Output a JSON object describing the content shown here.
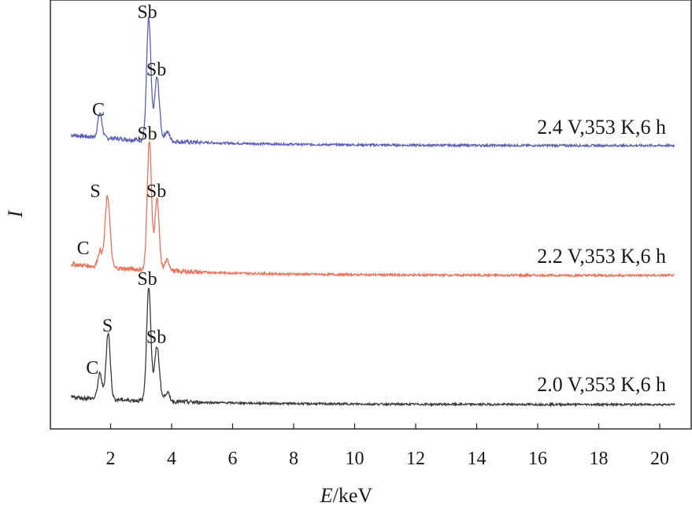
{
  "chart_data": {
    "type": "line",
    "title": "",
    "xlabel_italic": "E",
    "xlabel_unit": "/keV",
    "ylabel": "I",
    "xlim": [
      0.5,
      20.5
    ],
    "x_ticks": [
      "2",
      "4",
      "6",
      "8",
      "10",
      "12",
      "14",
      "16",
      "18",
      "20"
    ],
    "x_tick_values": [
      2,
      4,
      6,
      8,
      10,
      12,
      14,
      16,
      18,
      20
    ],
    "grid": false,
    "series": [
      {
        "name": "2.4 V,353 K,6 h",
        "color": "#5b5fb8",
        "baseline": 0.08,
        "peaks": [
          {
            "x": 1.65,
            "height": 0.2,
            "width": 0.07
          },
          {
            "x": 3.25,
            "height": 1.0,
            "width": 0.07
          },
          {
            "x": 3.52,
            "height": 0.52,
            "width": 0.08
          },
          {
            "x": 3.85,
            "height": 0.08,
            "width": 0.08
          }
        ],
        "annotations": [
          {
            "text": "C",
            "x": 1.6,
            "at_peak_height": 0.22
          },
          {
            "text": "Sb",
            "x": 3.2,
            "at_peak_height": 1.02
          },
          {
            "text": "Sb",
            "x": 3.5,
            "at_peak_height": 0.55
          }
        ]
      },
      {
        "name": "2.2 V,353 K,6 h",
        "color": "#e8745c",
        "baseline": 0.08,
        "peaks": [
          {
            "x": 1.65,
            "height": 0.12,
            "width": 0.07
          },
          {
            "x": 1.9,
            "height": 0.55,
            "width": 0.08
          },
          {
            "x": 3.27,
            "height": 1.0,
            "width": 0.07
          },
          {
            "x": 3.52,
            "height": 0.55,
            "width": 0.07
          },
          {
            "x": 3.85,
            "height": 0.08,
            "width": 0.08
          }
        ],
        "annotations": [
          {
            "text": "S",
            "x": 1.5,
            "at_peak_height": 0.58
          },
          {
            "text": "C",
            "x": 1.1,
            "at_peak_height": 0.14
          },
          {
            "text": "Sb",
            "x": 3.2,
            "at_peak_height": 1.02
          },
          {
            "text": "Sb",
            "x": 3.5,
            "at_peak_height": 0.58
          }
        ]
      },
      {
        "name": "2.0 V,353 K,6 h",
        "color": "#3a3a3a",
        "baseline": 0.06,
        "peaks": [
          {
            "x": 1.65,
            "height": 0.22,
            "width": 0.07
          },
          {
            "x": 1.92,
            "height": 0.58,
            "width": 0.07
          },
          {
            "x": 3.25,
            "height": 1.0,
            "width": 0.07
          },
          {
            "x": 3.52,
            "height": 0.48,
            "width": 0.08
          },
          {
            "x": 3.85,
            "height": 0.08,
            "width": 0.08
          }
        ],
        "annotations": [
          {
            "text": "C",
            "x": 1.4,
            "at_peak_height": 0.24
          },
          {
            "text": "S",
            "x": 1.9,
            "at_peak_height": 0.61
          },
          {
            "text": "Sb",
            "x": 3.2,
            "at_peak_height": 1.02
          },
          {
            "text": "Sb",
            "x": 3.5,
            "at_peak_height": 0.51
          }
        ]
      }
    ]
  }
}
